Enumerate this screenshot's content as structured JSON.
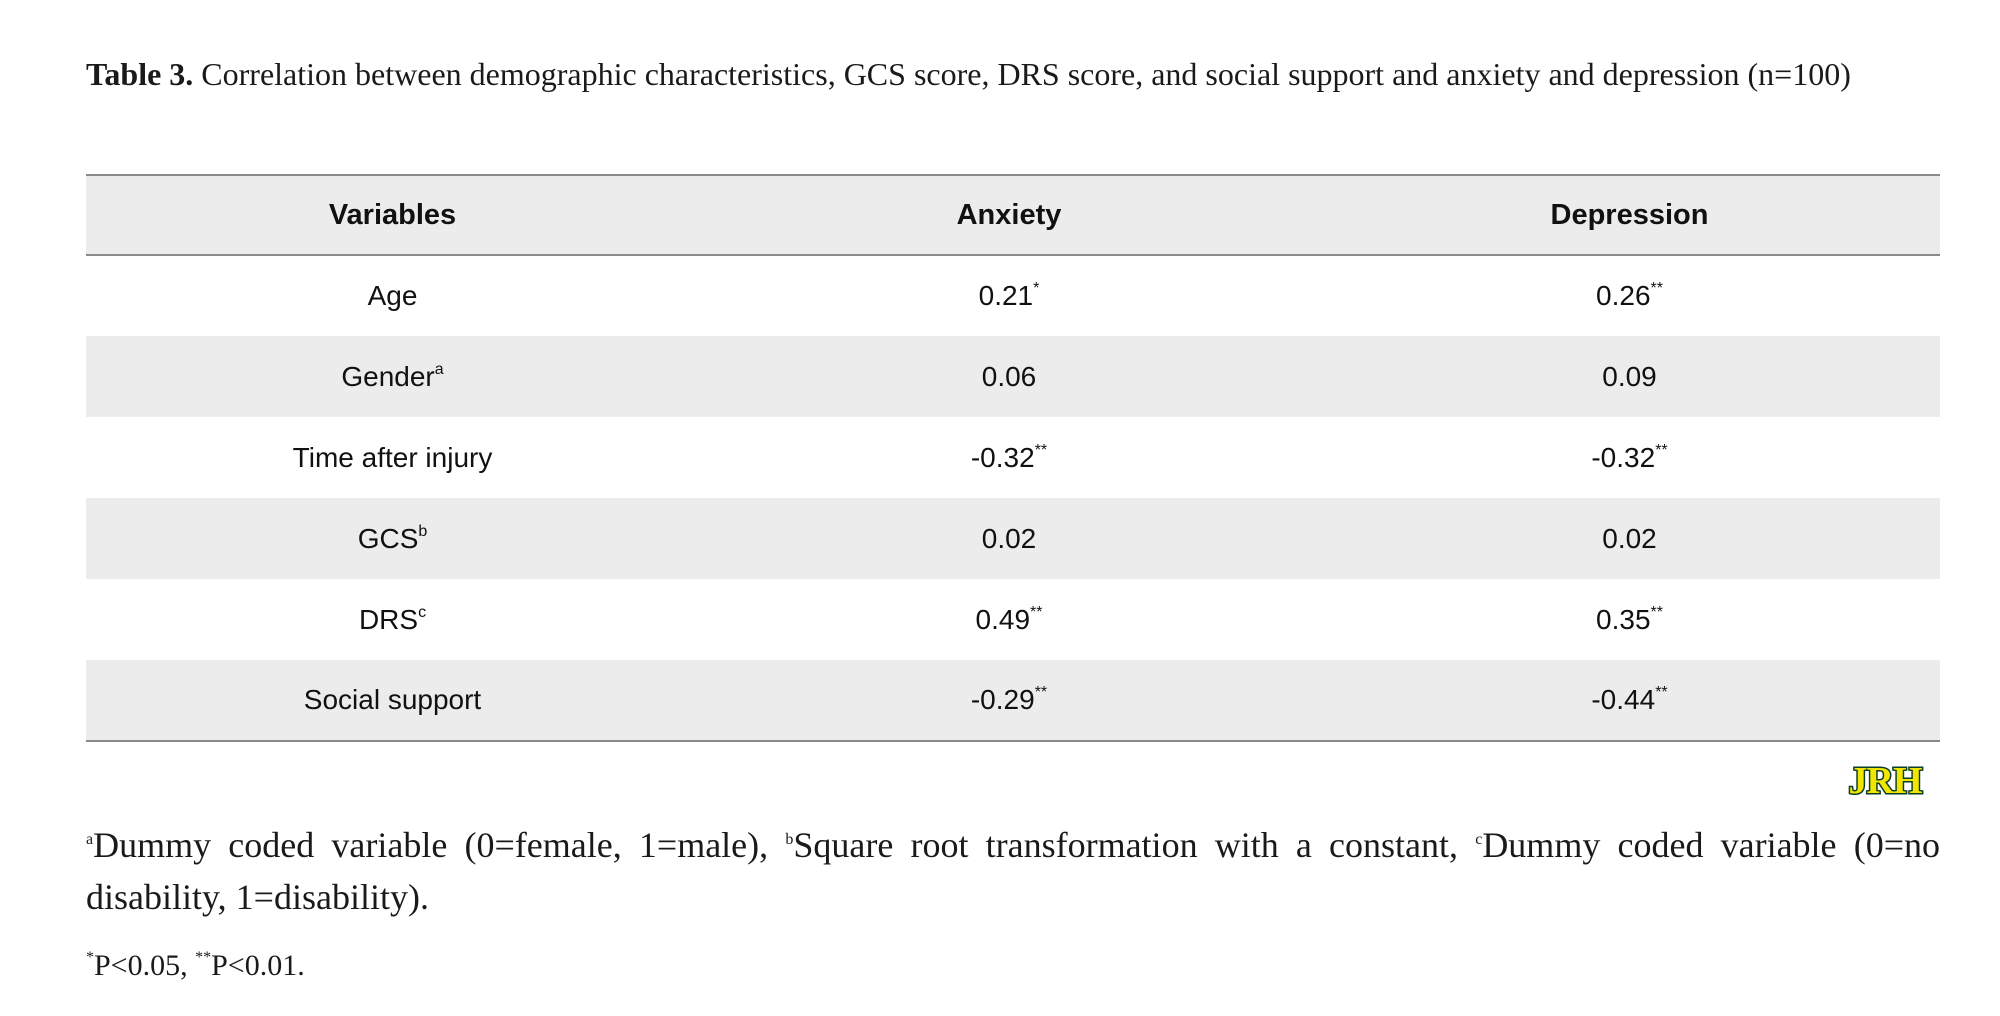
{
  "caption": {
    "label": "Table 3.",
    "text": "Correlation between demographic characteristics, GCS score, DRS score, and social support and anxiety and depression (n=100)"
  },
  "table": {
    "headers": [
      "Variables",
      "Anxiety",
      "Depression"
    ],
    "rows": [
      {
        "variable": "Age",
        "variable_sup": "",
        "anxiety": "0.21",
        "anxiety_sup": "*",
        "depression": "0.26",
        "depression_sup": "**"
      },
      {
        "variable": "Gender",
        "variable_sup": "a",
        "anxiety": "0.06",
        "anxiety_sup": "",
        "depression": "0.09",
        "depression_sup": ""
      },
      {
        "variable": "Time after injury",
        "variable_sup": "",
        "anxiety": "-0.32",
        "anxiety_sup": "**",
        "depression": "-0.32",
        "depression_sup": "**"
      },
      {
        "variable": "GCS",
        "variable_sup": "b",
        "anxiety": "0.02",
        "anxiety_sup": "",
        "depression": "0.02",
        "depression_sup": ""
      },
      {
        "variable": "DRS",
        "variable_sup": "c",
        "anxiety": "0.49",
        "anxiety_sup": "**",
        "depression": "0.35",
        "depression_sup": "**"
      },
      {
        "variable": "Social support",
        "variable_sup": "",
        "anxiety": "-0.29",
        "anxiety_sup": "**",
        "depression": "-0.44",
        "depression_sup": "**"
      }
    ]
  },
  "logo": {
    "text": "JRH",
    "fill_color": "#f2e600",
    "stroke_color": "#0b3d26"
  },
  "footnotes": {
    "note1": [
      {
        "sup": "a",
        "text": "Dummy coded variable (0=female, 1=male), "
      },
      {
        "sup": "b",
        "text": "Square root transformation with a constant, "
      },
      {
        "sup": "c",
        "text": "Dummy coded variable (0=no disability, 1=disability)."
      }
    ],
    "note2": [
      {
        "sup": "*",
        "text": "P<0.05, "
      },
      {
        "sup": "**",
        "text": "P<0.01."
      }
    ]
  },
  "colors": {
    "header_row": "#ececec",
    "alt_row": "#ececec",
    "rule": "#8a8a8a"
  }
}
